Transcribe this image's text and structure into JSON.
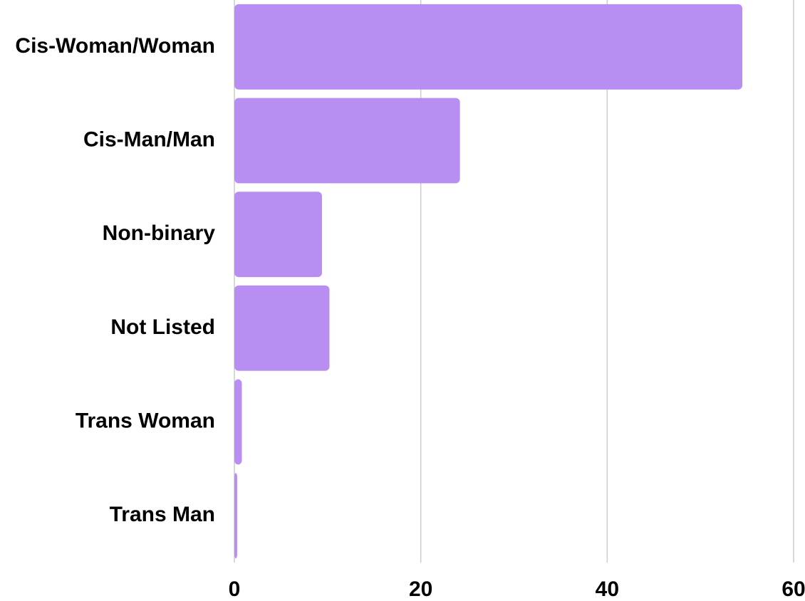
{
  "chart_data": {
    "type": "bar",
    "orientation": "horizontal",
    "categories": [
      "Cis-Woman/Woman",
      "Cis-Man/Man",
      "Non-binary",
      "Not Listed",
      "Trans Woman",
      "Trans Man"
    ],
    "values": [
      54.5,
      24.2,
      9.4,
      10.2,
      0.8,
      0.3
    ],
    "color": "#b98ef2",
    "xlim": [
      0,
      60
    ],
    "xticks": [
      0,
      20,
      40,
      60
    ],
    "grid": true
  }
}
